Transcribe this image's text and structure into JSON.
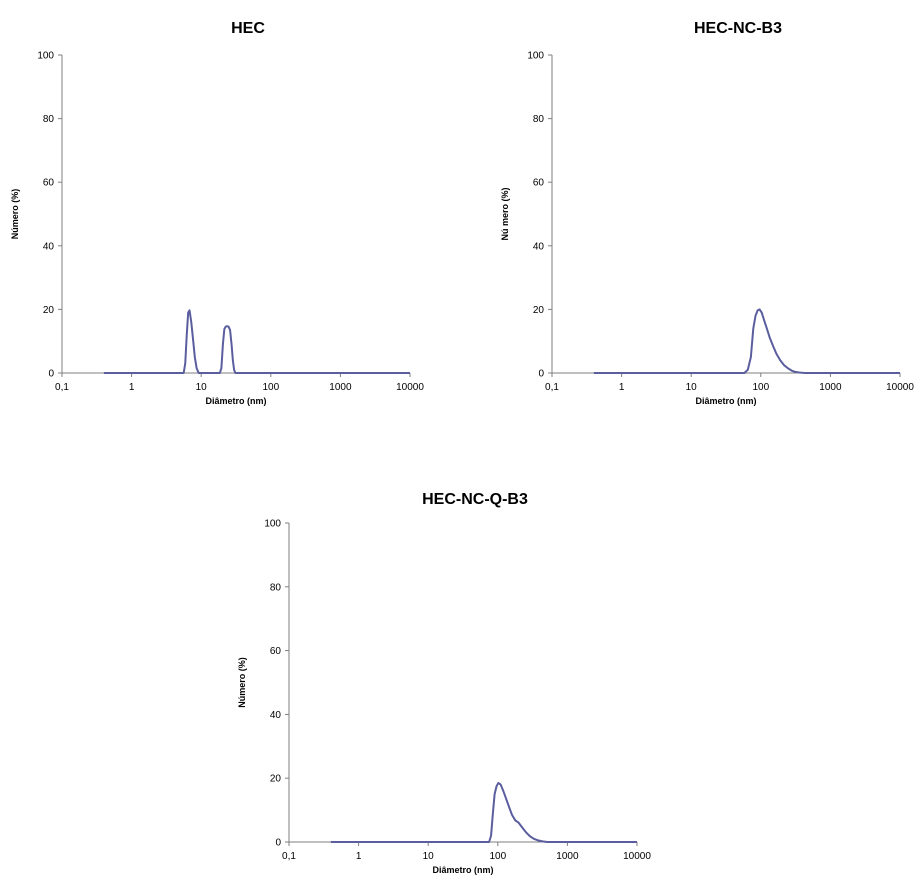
{
  "figure": {
    "series_color": "#5B5E9E",
    "axis_color": "#7f7f7f"
  },
  "chart_data": [
    {
      "type": "line",
      "title": "HEC",
      "xlabel": "Diâmetro (nm)",
      "ylabel": "Número (%)",
      "x_scale": "log",
      "xlim": [
        0.1,
        10000
      ],
      "ylim": [
        0,
        100
      ],
      "x_ticks": [
        0.1,
        1,
        10,
        100,
        1000,
        10000
      ],
      "x_tick_labels": [
        "0,1",
        "1",
        "10",
        "100",
        "1000",
        "10000"
      ],
      "y_ticks": [
        0,
        20,
        40,
        60,
        80,
        100
      ],
      "y_tick_labels": [
        "0",
        "20",
        "40",
        "60",
        "80",
        "100"
      ],
      "series": [
        {
          "x": [
            0.4,
            5.6,
            5.9,
            6.2,
            6.5,
            6.8,
            7.2,
            7.6,
            8.1,
            8.6,
            9.2,
            18.5,
            19.5,
            20.5,
            21.5,
            22.5,
            23.5,
            24.7,
            26,
            27.3,
            28.5,
            29.7,
            31,
            10000
          ],
          "y": [
            0,
            0,
            3,
            12,
            19,
            19.7,
            16,
            11,
            5,
            1.5,
            0,
            0,
            1.5,
            9,
            13.8,
            14.6,
            14.7,
            14.6,
            13.5,
            9,
            4,
            1,
            0,
            0
          ]
        }
      ]
    },
    {
      "type": "line",
      "title": "HEC-NC-B3",
      "xlabel": "Diâmetro (nm)",
      "ylabel": "Nú mero (%)",
      "x_scale": "log",
      "xlim": [
        0.1,
        10000
      ],
      "ylim": [
        0,
        100
      ],
      "x_ticks": [
        0.1,
        1,
        10,
        100,
        1000,
        10000
      ],
      "x_tick_labels": [
        "0,1",
        "1",
        "10",
        "100",
        "1000",
        "10000"
      ],
      "y_ticks": [
        0,
        20,
        40,
        60,
        80,
        100
      ],
      "y_tick_labels": [
        "0",
        "20",
        "40",
        "60",
        "80",
        "100"
      ],
      "series": [
        {
          "x": [
            0.4,
            58,
            65,
            72,
            78,
            84,
            90,
            96,
            103,
            112,
            122,
            135,
            150,
            168,
            190,
            215,
            245,
            280,
            320,
            370,
            430,
            10000
          ],
          "y": [
            0,
            0,
            1,
            5,
            14,
            18,
            19.7,
            20,
            19,
            16.5,
            14,
            11,
            8.5,
            6,
            4,
            2.5,
            1.5,
            0.7,
            0.3,
            0.1,
            0,
            0
          ]
        }
      ]
    },
    {
      "type": "line",
      "title": "HEC-NC-Q-B3",
      "xlabel": "Diâmetro (nm)",
      "ylabel": "Número (%)",
      "x_scale": "log",
      "xlim": [
        0.1,
        10000
      ],
      "ylim": [
        0,
        100
      ],
      "x_ticks": [
        0.1,
        1,
        10,
        100,
        1000,
        10000
      ],
      "x_tick_labels": [
        "0,1",
        "1",
        "10",
        "100",
        "1000",
        "10000"
      ],
      "y_ticks": [
        0,
        20,
        40,
        60,
        80,
        100
      ],
      "y_tick_labels": [
        "0",
        "20",
        "40",
        "60",
        "80",
        "100"
      ],
      "series": [
        {
          "x": [
            0.4,
            75,
            80,
            85,
            90,
            96,
            102,
            110,
            120,
            132,
            145,
            160,
            178,
            200,
            225,
            255,
            290,
            330,
            380,
            440,
            510,
            10000
          ],
          "y": [
            0,
            0,
            2,
            9,
            15,
            17.5,
            18.5,
            18,
            16,
            13.5,
            11,
            8.5,
            6.8,
            6,
            4.5,
            3,
            1.8,
            1,
            0.5,
            0.2,
            0,
            0
          ]
        }
      ]
    }
  ]
}
